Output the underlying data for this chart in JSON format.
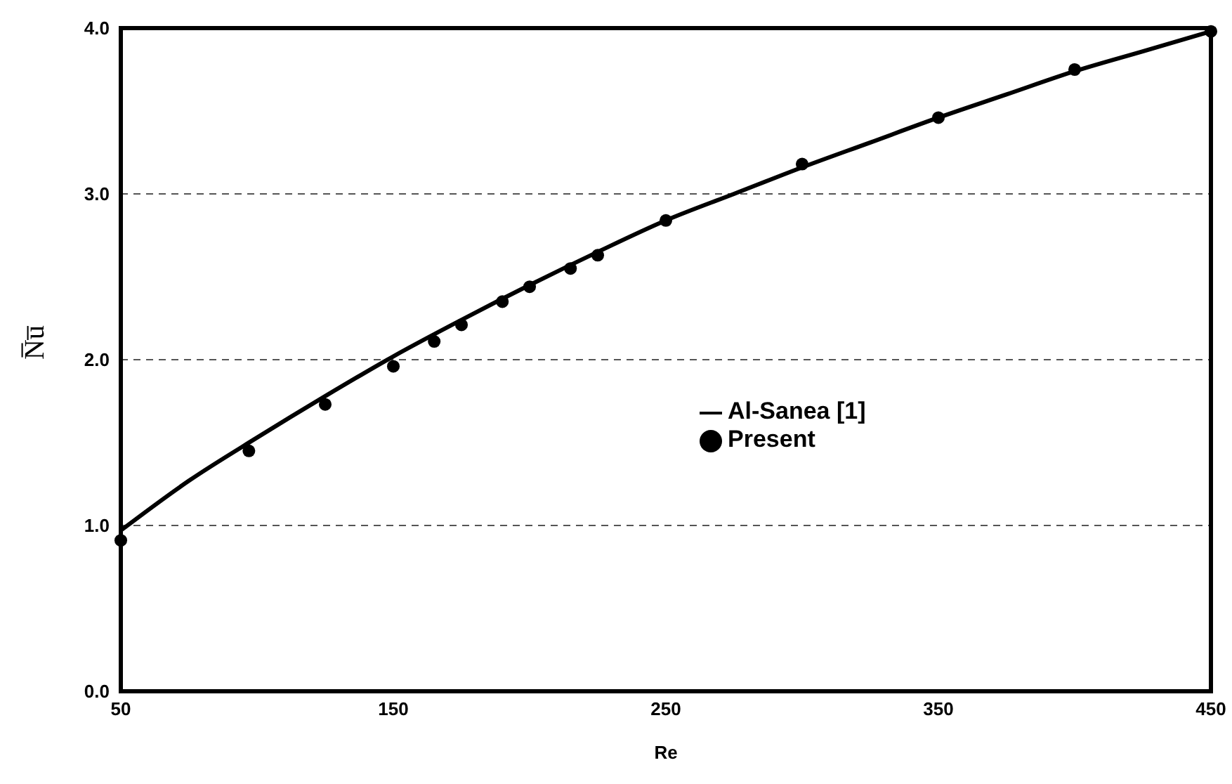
{
  "chart_data": {
    "type": "line",
    "xlabel": "Re",
    "ylabel": "N̅u̅",
    "xlim": [
      50,
      450
    ],
    "xticks": [
      50,
      150,
      250,
      350,
      450
    ],
    "ylim": [
      0,
      4
    ],
    "yticks": [
      {
        "value": 0,
        "label": "0.0"
      },
      {
        "value": 1,
        "label": "1.0"
      },
      {
        "value": 2,
        "label": "2.0"
      },
      {
        "value": 3,
        "label": "3.0"
      },
      {
        "value": 4,
        "label": "4.0"
      }
    ],
    "grid": "y",
    "legend": "right",
    "series": [
      {
        "name": "Al-Sanea [1]",
        "color": "#000000",
        "marker": "none",
        "x": [
          50,
          75,
          100,
          125,
          150,
          175,
          200,
          225,
          250,
          275,
          300,
          325,
          350,
          375,
          400,
          425,
          450
        ],
        "values": [
          0.97,
          1.27,
          1.53,
          1.78,
          2.02,
          2.24,
          2.45,
          2.65,
          2.84,
          3.0,
          3.16,
          3.31,
          3.46,
          3.6,
          3.74,
          3.86,
          3.98
        ]
      },
      {
        "name": "Present",
        "type": "scatter",
        "color": "#000000",
        "marker": "circle",
        "x": [
          50,
          97,
          125,
          150,
          165,
          175,
          190,
          200,
          215,
          225,
          250,
          300,
          350,
          400,
          450
        ],
        "values": [
          0.91,
          1.45,
          1.73,
          1.96,
          2.11,
          2.21,
          2.35,
          2.44,
          2.55,
          2.63,
          2.84,
          3.18,
          3.46,
          3.75,
          3.98
        ]
      }
    ]
  }
}
